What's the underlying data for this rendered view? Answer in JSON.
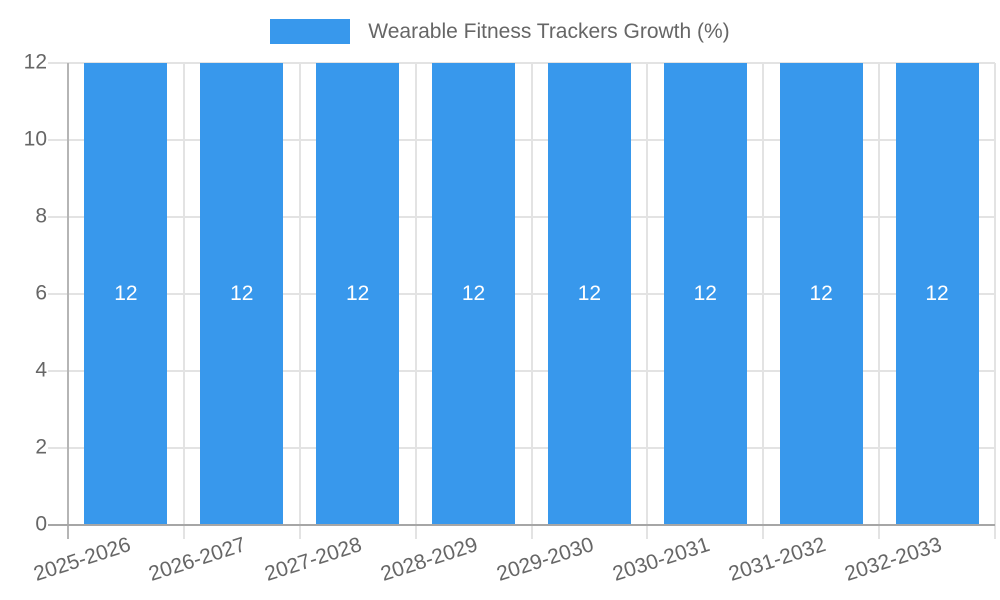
{
  "chart_data": {
    "type": "bar",
    "title": "",
    "legend_position": "top",
    "categories": [
      "2025-2026",
      "2026-2027",
      "2027-2028",
      "2028-2029",
      "2029-2030",
      "2030-2031",
      "2031-2032",
      "2032-2033"
    ],
    "series": [
      {
        "name": "Wearable Fitness Trackers Growth (%)",
        "values": [
          12,
          12,
          12,
          12,
          12,
          12,
          12,
          12
        ],
        "data_labels": [
          "12",
          "12",
          "12",
          "12",
          "12",
          "12",
          "12",
          "12"
        ]
      }
    ],
    "xlabel": "",
    "ylabel": "",
    "ylim": [
      0,
      12
    ],
    "yticks": [
      0,
      2,
      4,
      6,
      8,
      10,
      12
    ],
    "grid": true,
    "x_tick_rotation_deg": -18,
    "colors": {
      "bar": "#3898EC",
      "grid": "#E3E3E3",
      "y_axis_line": "#B5B5B5",
      "x_axis_line": "#A6A6A6",
      "tick_text": "#666666",
      "legend_text": "#666666",
      "bar_label_text": "#FFFFFF"
    }
  }
}
